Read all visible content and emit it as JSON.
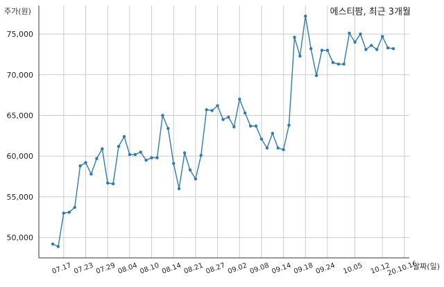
{
  "chart_data": {
    "type": "line",
    "title": "에스티팜, 최근 3개월",
    "xlabel": "날짜(일)",
    "ylabel": "주가(원)",
    "yticks": [
      "50,000",
      "55,000",
      "60,000",
      "65,000",
      "70,000",
      "75,000"
    ],
    "ytick_values": [
      50000,
      55000,
      60000,
      65000,
      70000,
      75000
    ],
    "xticks": [
      "07.17",
      "07.23",
      "07.29",
      "08.04",
      "08.10",
      "08.14",
      "08.21",
      "08.27",
      "09.02",
      "09.08",
      "09.14",
      "09.18",
      "09.24",
      "10.05",
      "10.12",
      "20.10.16"
    ],
    "xtick_index": [
      2,
      6,
      10,
      14,
      18,
      22,
      26,
      30,
      34,
      38,
      42,
      46,
      50,
      55,
      60,
      64
    ],
    "ylim": [
      47500,
      78500
    ],
    "grid": true,
    "line_color": "#2b7bb0",
    "series": [
      {
        "values": [
          49200,
          48900,
          53000,
          53100,
          53700,
          58800,
          59200,
          57800,
          59700,
          60900,
          56700,
          56600,
          61200,
          62400,
          60200,
          60200,
          60500,
          59500,
          59800,
          59800,
          65000,
          63400,
          59100,
          56000,
          60400,
          58300,
          57200,
          60100,
          65700,
          65600,
          66200,
          64500,
          64800,
          63600,
          67000,
          65300,
          63700,
          63700,
          62100,
          61000,
          62800,
          61000,
          60800,
          63800,
          74600,
          72300,
          77200,
          73200,
          69900,
          73000,
          73000,
          71500,
          71300,
          71300,
          75100,
          74000,
          75000,
          73100,
          73600,
          73100,
          74700,
          73300,
          73200
        ]
      }
    ]
  }
}
